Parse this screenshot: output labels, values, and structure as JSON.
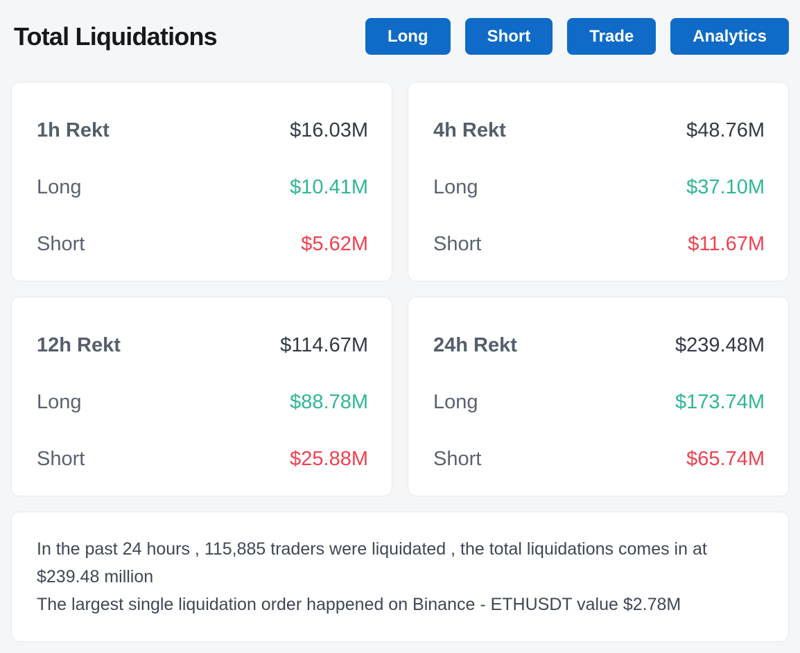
{
  "colors": {
    "accent_blue": "#0f6bc7",
    "long_green": "#2eb795",
    "short_red": "#f0414e",
    "page_background": "#f5f6f7"
  },
  "header": {
    "title": "Total Liquidations",
    "buttons": [
      {
        "label": "Long"
      },
      {
        "label": "Short"
      },
      {
        "label": "Trade"
      },
      {
        "label": "Analytics"
      }
    ]
  },
  "cards": [
    {
      "period": "1h Rekt",
      "total": "$16.03M",
      "long_label": "Long",
      "long_value": "$10.41M",
      "short_label": "Short",
      "short_value": "$5.62M"
    },
    {
      "period": "4h Rekt",
      "total": "$48.76M",
      "long_label": "Long",
      "long_value": "$37.10M",
      "short_label": "Short",
      "short_value": "$11.67M"
    },
    {
      "period": "12h Rekt",
      "total": "$114.67M",
      "long_label": "Long",
      "long_value": "$88.78M",
      "short_label": "Short",
      "short_value": "$25.88M"
    },
    {
      "period": "24h Rekt",
      "total": "$239.48M",
      "long_label": "Long",
      "long_value": "$173.74M",
      "short_label": "Short",
      "short_value": "$65.74M"
    }
  ],
  "summary": {
    "line1": "In the past 24 hours , 115,885 traders were liquidated , the total liquidations comes in at $239.48 million",
    "line2": "The largest single liquidation order happened on Binance - ETHUSDT value $2.78M"
  }
}
